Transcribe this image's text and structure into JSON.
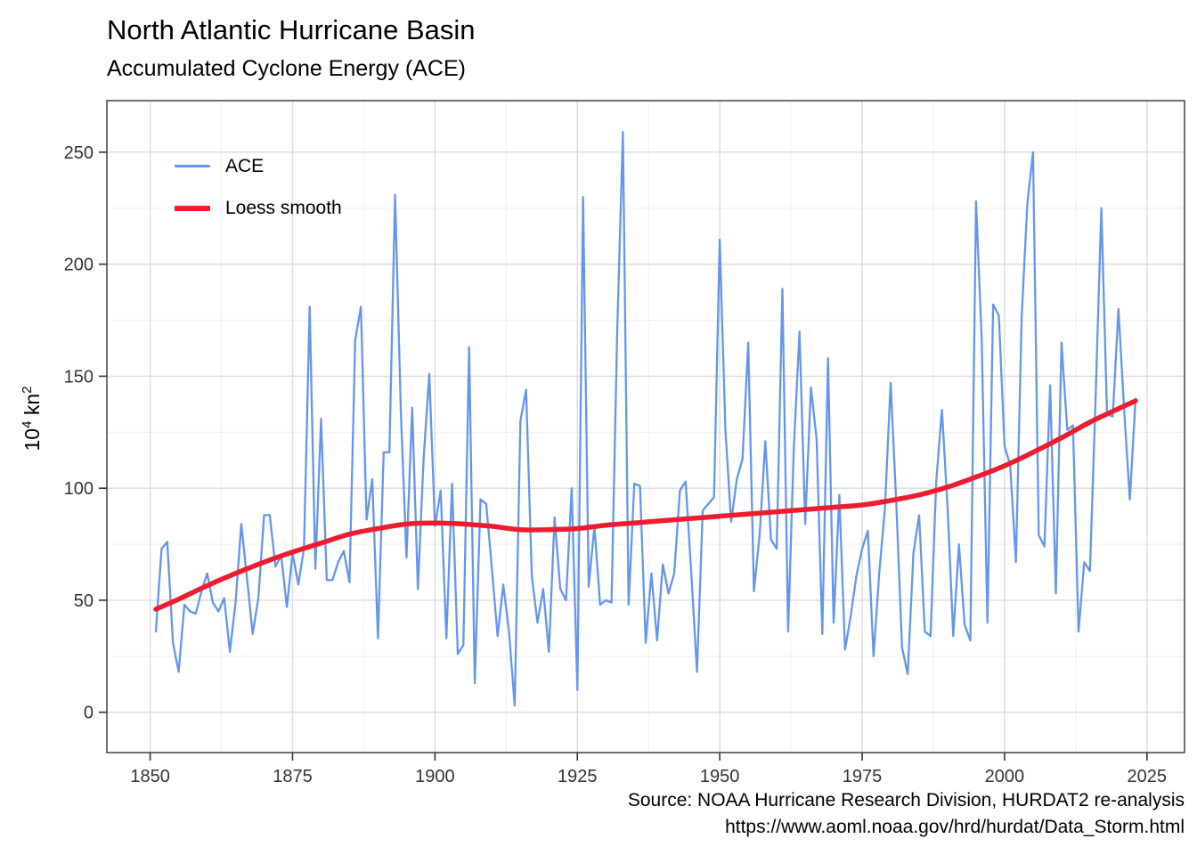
{
  "header": {
    "title": "North Atlantic Hurricane Basin",
    "subtitle": "Accumulated Cyclone Energy (ACE)"
  },
  "y_axis": {
    "label": {
      "base": "10",
      "exponent": "4",
      "unit": "kn",
      "unit_exponent": "2"
    },
    "ticks": [
      0,
      50,
      100,
      150,
      200,
      250
    ]
  },
  "x_axis": {
    "ticks": [
      1850,
      1875,
      1900,
      1925,
      1950,
      1975,
      2000,
      2025
    ]
  },
  "legend": {
    "items": [
      {
        "label": "ACE",
        "color": "#6495ED"
      },
      {
        "label": "Loess smooth",
        "color": "#ED1C2E"
      }
    ]
  },
  "caption": {
    "line1": "Source: NOAA Hurricane Research Division, HURDAT2 re-analysis",
    "line2": "https://www.aoml.noaa.gov/hrd/hurdat/Data_Storm.html"
  },
  "chart_data": {
    "type": "line",
    "title": "North Atlantic Hurricane Basin",
    "subtitle": "Accumulated Cyclone Energy (ACE)",
    "xlabel": "",
    "ylabel": "10^4 kn^2",
    "grid": true,
    "legend_position": "inside-top-left",
    "xlim": [
      1842.4,
      2031.6
    ],
    "ylim": [
      -18,
      273
    ],
    "x_ticks": [
      1850,
      1875,
      1900,
      1925,
      1950,
      1975,
      2000,
      2025
    ],
    "x_minor_ticks": [
      1862.5,
      1887.5,
      1912.5,
      1937.5,
      1962.5,
      1987.5,
      2012.5
    ],
    "y_ticks": [
      0,
      50,
      100,
      150,
      200,
      250
    ],
    "y_minor_ticks": [
      25,
      75,
      125,
      175,
      225
    ],
    "x_start_year": 1851,
    "series": [
      {
        "name": "ACE",
        "color": "#6495ED",
        "values": [
          36,
          73,
          76,
          31,
          18,
          48,
          45,
          44,
          54,
          62,
          49,
          45,
          51,
          27,
          49,
          84,
          60,
          35,
          51,
          88,
          88,
          65,
          70,
          47,
          71,
          57,
          73,
          181,
          64,
          131,
          59,
          59,
          67,
          72,
          58,
          166,
          181,
          86,
          104,
          33,
          116,
          116,
          231,
          135,
          69,
          136,
          55,
          113,
          151,
          83,
          99,
          33,
          102,
          26,
          30,
          163,
          13,
          95,
          93,
          64,
          34,
          57,
          36,
          3,
          130,
          144,
          61,
          40,
          55,
          27,
          87,
          55,
          50,
          100,
          10,
          230,
          56,
          83,
          48,
          50,
          49,
          170,
          259,
          48,
          102,
          101,
          31,
          62,
          32,
          66,
          53,
          62,
          99,
          103,
          62,
          18,
          90,
          93,
          96,
          211,
          126,
          85,
          104,
          113,
          165,
          54,
          79,
          121,
          77,
          73,
          189,
          36,
          118,
          170,
          84,
          145,
          122,
          35,
          158,
          40,
          97,
          28,
          43,
          61,
          73,
          81,
          25,
          62,
          91,
          147,
          93,
          29,
          17,
          71,
          88,
          36,
          34,
          103,
          135,
          91,
          34,
          75,
          39,
          32,
          228,
          166,
          40,
          182,
          177,
          119,
          110,
          67,
          176,
          227,
          250,
          79,
          74,
          146,
          53,
          165,
          126,
          128,
          36,
          67,
          63,
          141,
          225,
          133,
          132,
          180,
          135,
          95,
          140
        ]
      },
      {
        "name": "Loess smooth",
        "color": "#ED1C2E",
        "x": [
          1851,
          1855,
          1860,
          1865,
          1870,
          1875,
          1880,
          1885,
          1890,
          1895,
          1900,
          1905,
          1910,
          1915,
          1920,
          1925,
          1930,
          1935,
          1940,
          1945,
          1950,
          1955,
          1960,
          1965,
          1970,
          1975,
          1980,
          1985,
          1990,
          1995,
          2000,
          2005,
          2010,
          2015,
          2020,
          2023
        ],
        "values": [
          46,
          50.5,
          56.5,
          62,
          67,
          71.5,
          75.5,
          79.5,
          82,
          84,
          84.5,
          84,
          83,
          81.5,
          81.5,
          82,
          83.5,
          84.5,
          85.5,
          86.5,
          87.5,
          88.5,
          89.5,
          90.5,
          91.5,
          92.5,
          94.5,
          97,
          100.5,
          105,
          110,
          116,
          122.5,
          129.5,
          135.5,
          139
        ]
      }
    ]
  }
}
